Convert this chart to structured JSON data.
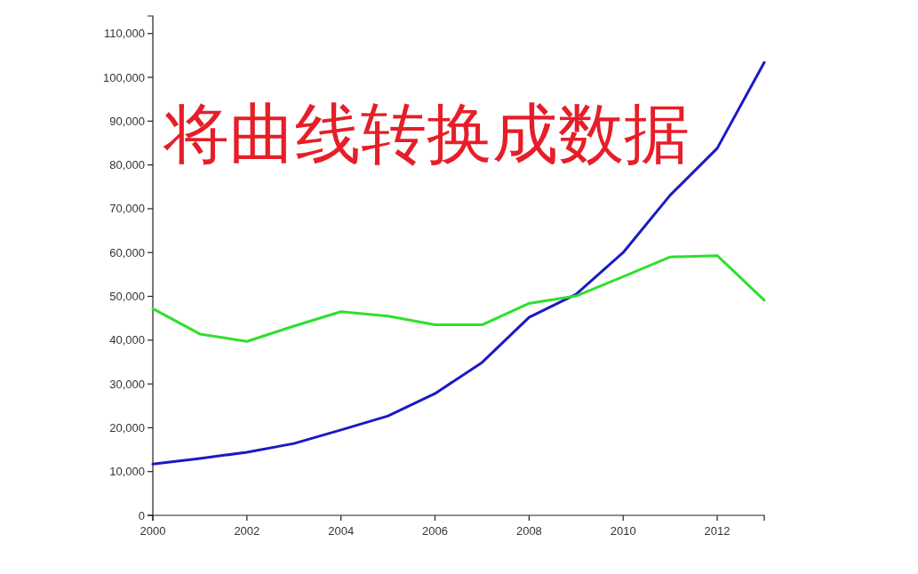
{
  "chart_data": {
    "type": "line",
    "title": "将曲线转换成数据",
    "x": [
      2000,
      2001,
      2002,
      2003,
      2004,
      2005,
      2006,
      2007,
      2008,
      2009,
      2010,
      2011,
      2012,
      2013
    ],
    "xlim": [
      2000,
      2013
    ],
    "xticks": [
      2000,
      2002,
      2004,
      2006,
      2008,
      2010,
      2012
    ],
    "ylim": [
      0,
      114000
    ],
    "yticks": [
      {
        "value": 0,
        "label": "0"
      },
      {
        "value": 10000,
        "label": "10,000"
      },
      {
        "value": 20000,
        "label": "20,000"
      },
      {
        "value": 30000,
        "label": "30,000"
      },
      {
        "value": 40000,
        "label": "40,000"
      },
      {
        "value": 50000,
        "label": "50,000"
      },
      {
        "value": 60000,
        "label": "60,000"
      },
      {
        "value": 70000,
        "label": "70,000"
      },
      {
        "value": 80000,
        "label": "80,000"
      },
      {
        "value": 90000,
        "label": "90,000"
      },
      {
        "value": 100000,
        "label": "100,000"
      },
      {
        "value": 110000,
        "label": "110,000"
      }
    ],
    "line_style": "solid",
    "series": [
      {
        "color": "#1a1ac4",
        "values": [
          11700,
          13000,
          14400,
          16400,
          19500,
          22700,
          27800,
          34900,
          45200,
          50500,
          60000,
          73100,
          83800,
          103400
        ]
      },
      {
        "color": "#2ee02e",
        "values": [
          47200,
          41400,
          39700,
          43200,
          46500,
          45500,
          43500,
          43500,
          48400,
          50100,
          54500,
          59000,
          59300,
          49100
        ]
      }
    ]
  }
}
